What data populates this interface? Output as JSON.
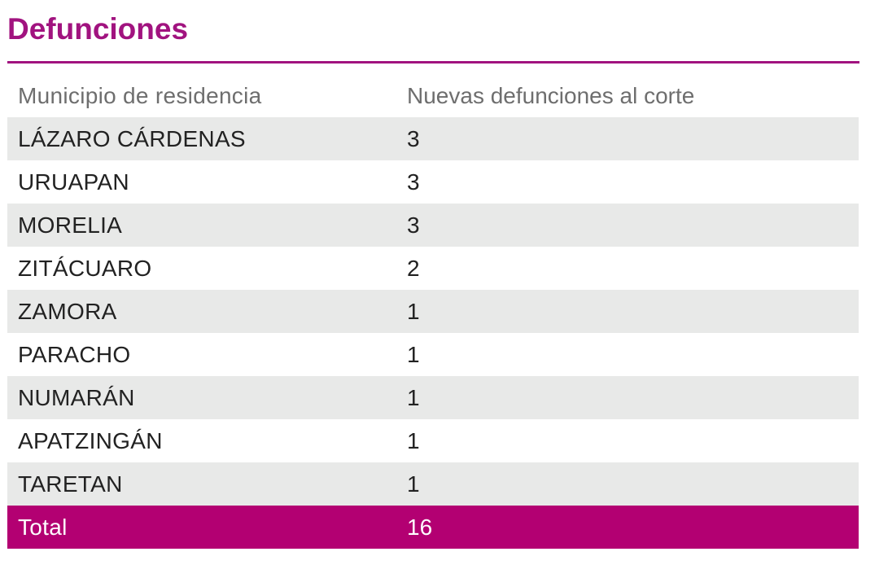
{
  "title": "Defunciones",
  "colors": {
    "accent": "#a1137f",
    "total_row": "#b30072",
    "shaded_row": "#e8e9e8"
  },
  "table": {
    "headers": [
      "Municipio de residencia",
      "Nuevas defunciones al corte"
    ],
    "rows": [
      {
        "municipio": "LÁZARO CÁRDENAS",
        "defunciones": "3"
      },
      {
        "municipio": "URUAPAN",
        "defunciones": "3"
      },
      {
        "municipio": "MORELIA",
        "defunciones": "3"
      },
      {
        "municipio": "ZITÁCUARO",
        "defunciones": "2"
      },
      {
        "municipio": "ZAMORA",
        "defunciones": "1"
      },
      {
        "municipio": "PARACHO",
        "defunciones": "1"
      },
      {
        "municipio": "NUMARÁN",
        "defunciones": "1"
      },
      {
        "municipio": "APATZINGÁN",
        "defunciones": "1"
      },
      {
        "municipio": "TARETAN",
        "defunciones": "1"
      }
    ],
    "total": {
      "label": "Total",
      "value": "16"
    }
  }
}
